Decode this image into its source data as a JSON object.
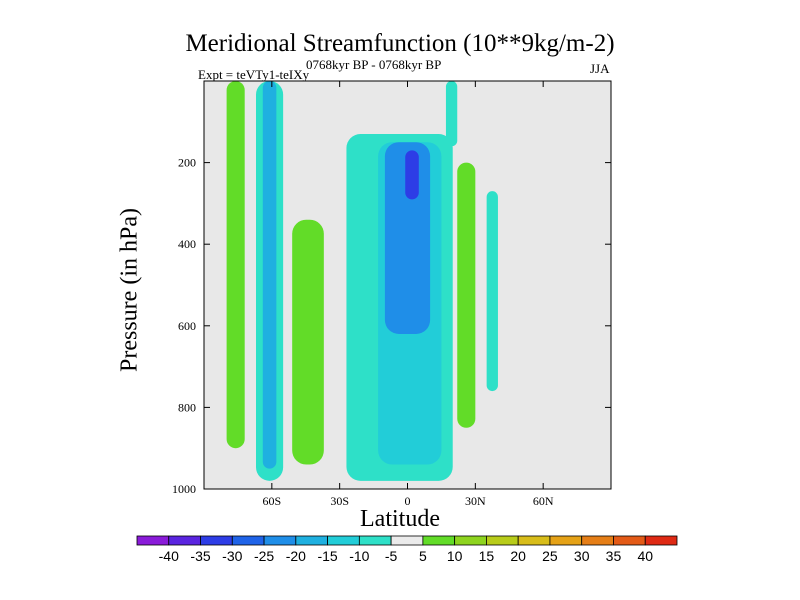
{
  "chart_data": {
    "type": "contour",
    "title": "Meridional Streamfunction (10**9kg/m-2)",
    "left_label": "Expt = teVTy1-teIXy",
    "center_label": "0768kyr BP - 0768kyr BP",
    "right_label": "JJA",
    "xlabel": "Latitude",
    "ylabel": "Pressure (in hPa)",
    "xlim": [
      -90,
      90
    ],
    "ylim": [
      1000,
      0
    ],
    "x_ticks": [
      {
        "value": -60,
        "label": "60S"
      },
      {
        "value": -30,
        "label": "30S"
      },
      {
        "value": 0,
        "label": "0"
      },
      {
        "value": 30,
        "label": "30N"
      },
      {
        "value": 60,
        "label": "60N"
      }
    ],
    "y_ticks": [
      {
        "value": 200,
        "label": "200"
      },
      {
        "value": 400,
        "label": "400"
      },
      {
        "value": 600,
        "label": "600"
      },
      {
        "value": 800,
        "label": "800"
      },
      {
        "value": 1000,
        "label": "1000"
      }
    ],
    "colorbar": {
      "levels": [
        "-40",
        "-35",
        "-30",
        "-25",
        "-20",
        "-15",
        "-10",
        "-5",
        "5",
        "10",
        "15",
        "20",
        "25",
        "30",
        "35",
        "40"
      ],
      "colors": [
        "#8a1bd9",
        "#5a24e0",
        "#2d3de6",
        "#1f63e8",
        "#1f8ee8",
        "#1fb0e0",
        "#22cdd8",
        "#2ee0c8",
        "#ebebeb",
        "#62dc28",
        "#8ed41f",
        "#b8cc1a",
        "#d8bd1a",
        "#e5a217",
        "#e57e17",
        "#e35a17",
        "#df2a14"
      ]
    },
    "regions": [
      {
        "level": "5",
        "color": "#62dc28",
        "x": [
          -80,
          -72
        ],
        "p": [
          0,
          900
        ]
      },
      {
        "level": "-5",
        "color": "#2ee0c8",
        "x": [
          -67,
          -55
        ],
        "p": [
          0,
          980
        ]
      },
      {
        "level": "-15",
        "color": "#1fb0e0",
        "x": [
          -64,
          -58
        ],
        "p": [
          0,
          950
        ]
      },
      {
        "level": "5",
        "color": "#62dc28",
        "x": [
          -51,
          -37
        ],
        "p": [
          340,
          940
        ]
      },
      {
        "level": "-5",
        "color": "#2ee0c8",
        "x": [
          -27,
          20
        ],
        "p": [
          130,
          980
        ]
      },
      {
        "level": "-10",
        "color": "#22cdd8",
        "x": [
          -13,
          15
        ],
        "p": [
          150,
          940
        ]
      },
      {
        "level": "-20",
        "color": "#1f8ee8",
        "x": [
          -10,
          10
        ],
        "p": [
          150,
          620
        ]
      },
      {
        "level": "-30",
        "color": "#2d3de6",
        "x": [
          -1,
          5
        ],
        "p": [
          170,
          290
        ]
      },
      {
        "level": "5",
        "color": "#62dc28",
        "x": [
          22,
          30
        ],
        "p": [
          200,
          850
        ]
      },
      {
        "level": "-5",
        "color": "#2ee0c8",
        "x": [
          17,
          22
        ],
        "p": [
          0,
          160
        ]
      },
      {
        "level": "-5",
        "color": "#2ee0c8",
        "x": [
          35,
          40
        ],
        "p": [
          270,
          760
        ]
      }
    ]
  }
}
